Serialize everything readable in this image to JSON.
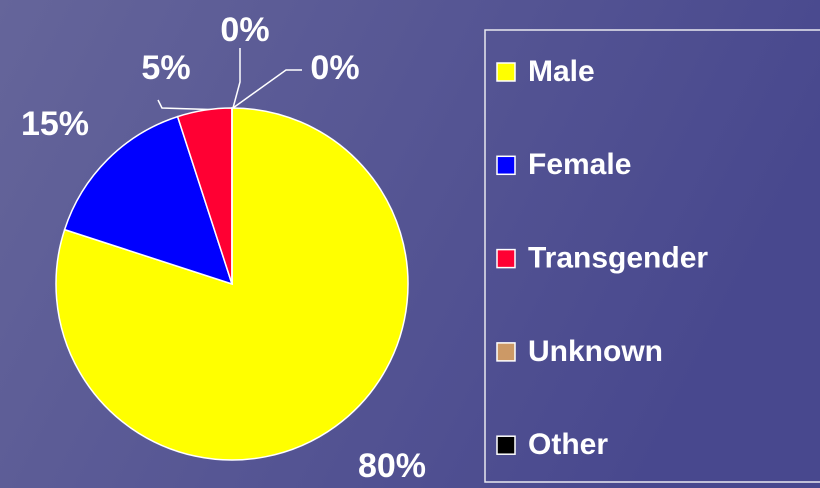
{
  "chart_data": {
    "type": "pie",
    "categories": [
      "Male",
      "Female",
      "Transgender",
      "Unknown",
      "Other"
    ],
    "values": [
      80,
      15,
      5,
      0,
      0
    ],
    "value_labels": [
      "80%",
      "15%",
      "5%",
      "0%",
      "0%"
    ],
    "colors": [
      "#ffff00",
      "#0000ff",
      "#ff0033",
      "#cc9966",
      "#000000"
    ],
    "legend": "right"
  }
}
